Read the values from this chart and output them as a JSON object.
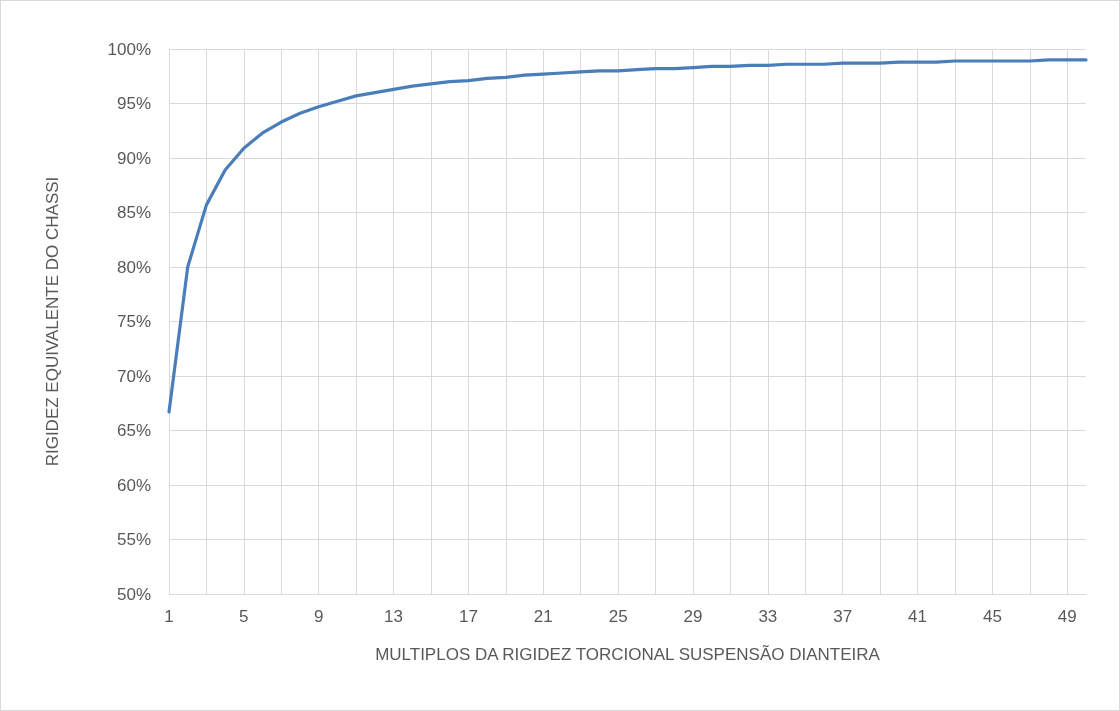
{
  "chart_data": {
    "type": "line",
    "xlabel": "MULTIPLOS DA RIGIDEZ TORCIONAL SUSPENSÃO DIANTEIRA",
    "ylabel": "RIGIDEZ EQUIVALENTE DO CHASSI",
    "x": [
      1,
      2,
      3,
      4,
      5,
      6,
      7,
      8,
      9,
      10,
      11,
      12,
      13,
      14,
      15,
      16,
      17,
      18,
      19,
      20,
      21,
      22,
      23,
      24,
      25,
      26,
      27,
      28,
      29,
      30,
      31,
      32,
      33,
      34,
      35,
      36,
      37,
      38,
      39,
      40,
      41,
      42,
      43,
      44,
      45,
      46,
      47,
      48,
      49,
      50
    ],
    "series": [
      {
        "color": "#4a7ebb",
        "values": [
          66.7,
          80.0,
          85.7,
          88.9,
          90.9,
          92.3,
          93.3,
          94.1,
          94.7,
          95.2,
          95.7,
          96.0,
          96.3,
          96.6,
          96.8,
          97.0,
          97.1,
          97.3,
          97.4,
          97.6,
          97.7,
          97.8,
          97.9,
          98.0,
          98.0,
          98.1,
          98.2,
          98.2,
          98.3,
          98.4,
          98.4,
          98.5,
          98.5,
          98.6,
          98.6,
          98.6,
          98.7,
          98.7,
          98.7,
          98.8,
          98.8,
          98.8,
          98.9,
          98.9,
          98.9,
          98.9,
          98.9,
          99.0,
          99.0,
          99.0
        ]
      }
    ],
    "xlim": [
      1,
      50
    ],
    "xticks": [
      1,
      {
        "value": 3,
        "label": null
      },
      5,
      {
        "value": 7,
        "label": null
      },
      9,
      {
        "value": 11,
        "label": null
      },
      13,
      {
        "value": 15,
        "label": null
      },
      17,
      {
        "value": 19,
        "label": null
      },
      21,
      {
        "value": 23,
        "label": null
      },
      25,
      {
        "value": 27,
        "label": null
      },
      29,
      {
        "value": 31,
        "label": null
      },
      33,
      {
        "value": 35,
        "label": null
      },
      37,
      {
        "value": 39,
        "label": null
      },
      41,
      {
        "value": 43,
        "label": null
      },
      45,
      {
        "value": 47,
        "label": null
      },
      49
    ],
    "ylim": [
      50,
      100
    ],
    "yticks": [
      {
        "value": 50,
        "label": "50%"
      },
      {
        "value": 55,
        "label": "55%"
      },
      {
        "value": 60,
        "label": "60%"
      },
      {
        "value": 65,
        "label": "65%"
      },
      {
        "value": 70,
        "label": "70%"
      },
      {
        "value": 75,
        "label": "75%"
      },
      {
        "value": 80,
        "label": "80%"
      },
      {
        "value": 85,
        "label": "85%"
      },
      {
        "value": 90,
        "label": "90%"
      },
      {
        "value": 95,
        "label": "95%"
      },
      {
        "value": 100,
        "label": "100%"
      }
    ],
    "grid": true,
    "marker": "none",
    "line_style": "solid"
  }
}
